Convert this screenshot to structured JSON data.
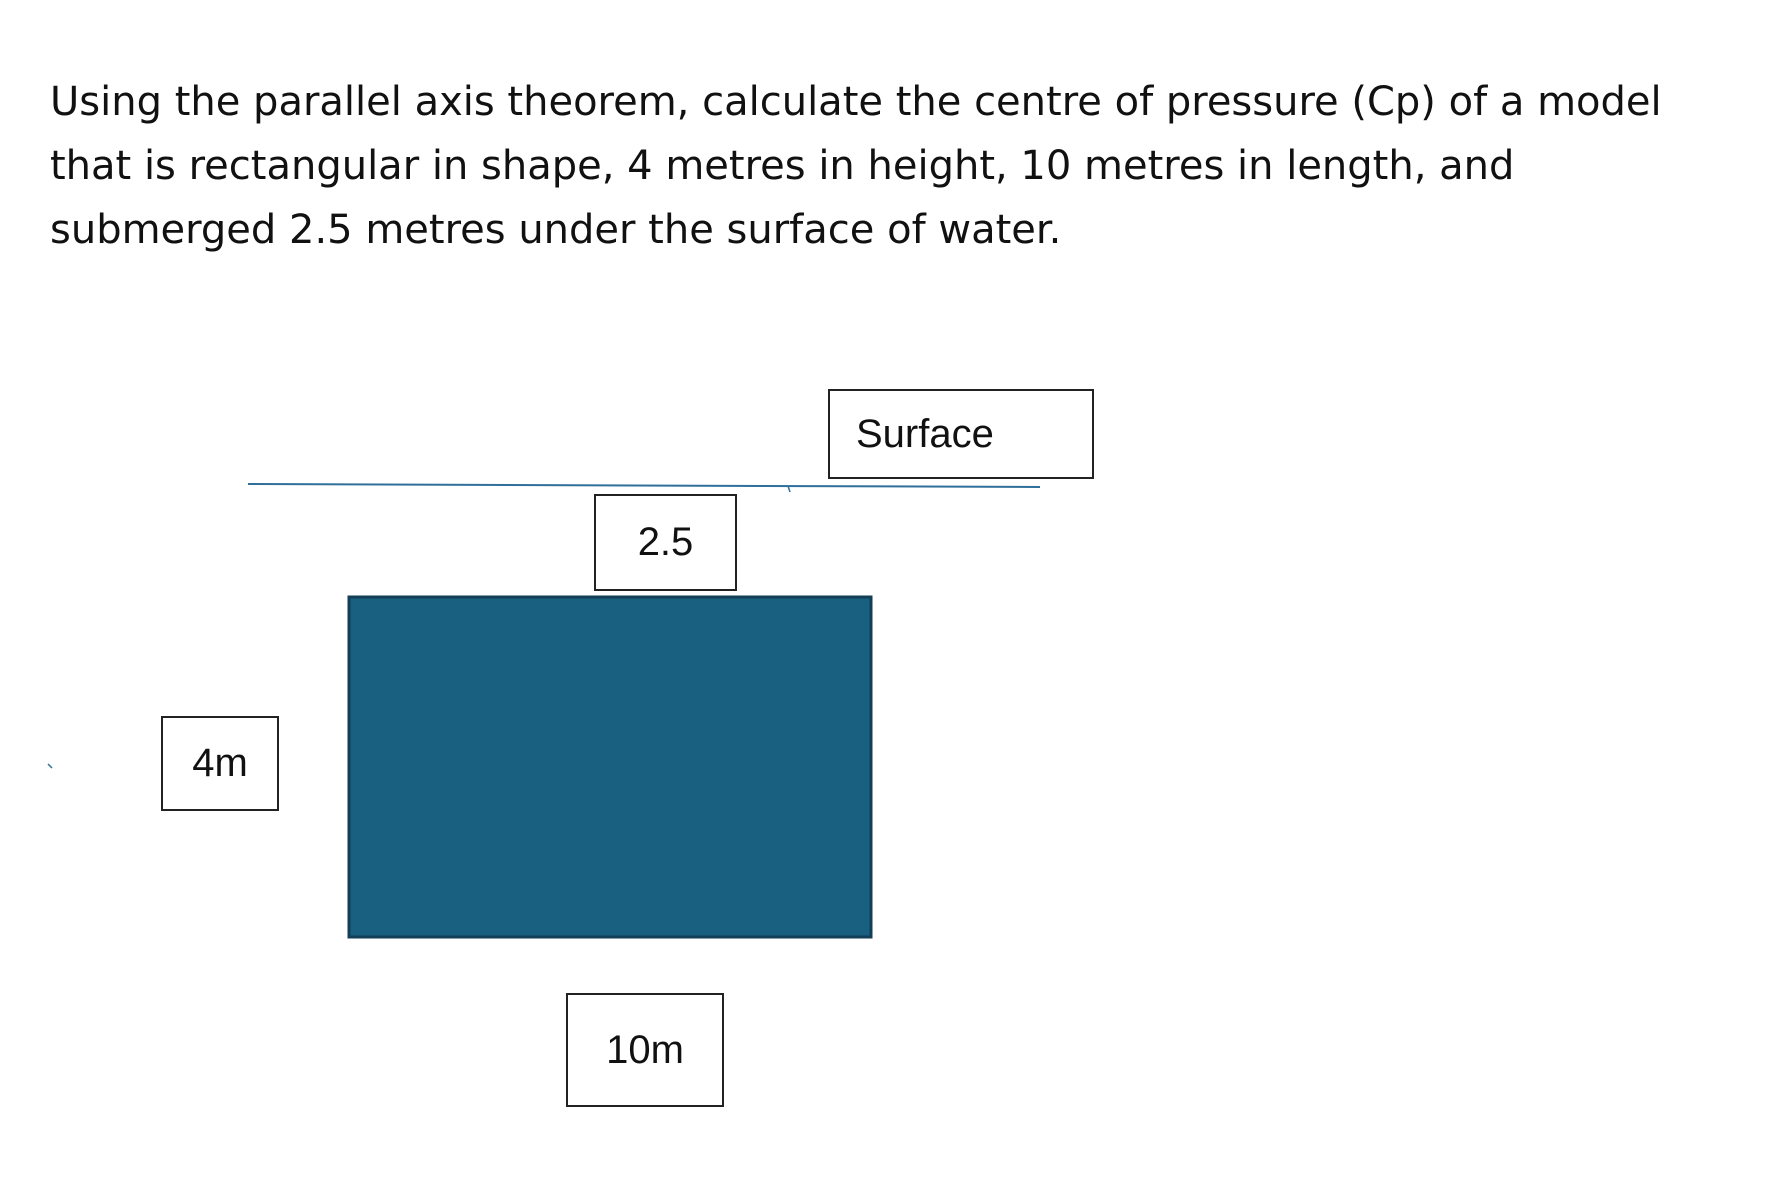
{
  "question": {
    "text": "Using the parallel axis theorem, calculate the centre of pressure (Cp) of a model that is rectangular in shape, 4 metres in height, 10 metres in length, and submerged 2.5 metres under the surface of water."
  },
  "diagram": {
    "labels": {
      "surface": "Surface",
      "depth": "2.5",
      "height": "4m",
      "length": "10m"
    },
    "colors": {
      "block_fill": "#185f80",
      "block_border": "#123f57",
      "water_line": "#2f6f9a"
    }
  }
}
